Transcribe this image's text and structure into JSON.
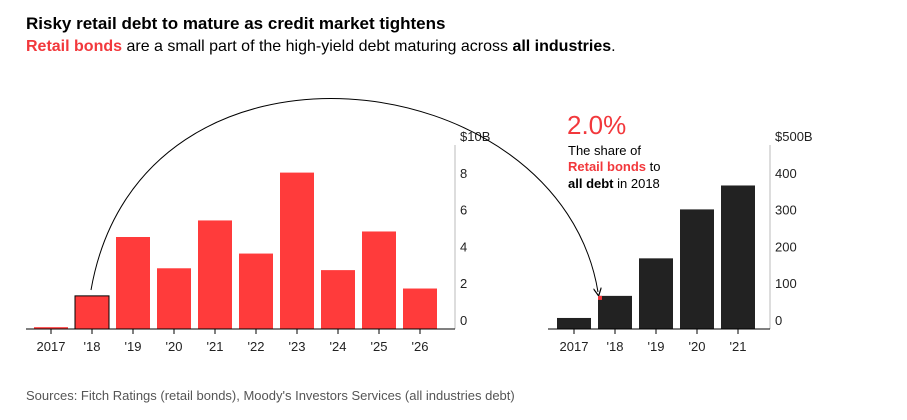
{
  "title": "Risky retail debt to mature as credit market tightens",
  "subtitle": {
    "part1": "Retail bonds",
    "part2": " are a small part of the high-yield debt maturing across ",
    "part3": "all industries",
    "part4": "."
  },
  "annotation": {
    "value": "2.0%",
    "line1": "The share of",
    "line2_red": "Retail bonds",
    "line2_rest": " to",
    "line3_bold": "all debt",
    "line3_rest": " in 2018"
  },
  "source": "Sources: Fitch Ratings (retail bonds), Moody's Investors Services (all industries debt)",
  "colors": {
    "retail": "#ff3b3b",
    "all": "#222222",
    "highlight": "#f2383c"
  },
  "chart_data": [
    {
      "type": "bar",
      "name": "Retail bonds",
      "categories": [
        "2017",
        "'18",
        "'19",
        "'20",
        "'21",
        "'22",
        "'23",
        "'24",
        "'25",
        "'26"
      ],
      "values": [
        0.1,
        1.8,
        5.0,
        3.3,
        5.9,
        4.1,
        8.5,
        3.2,
        5.3,
        2.2
      ],
      "ylim": [
        0,
        10
      ],
      "yticks": [
        "$10B",
        "8",
        "6",
        "4",
        "2",
        "0"
      ],
      "highlight_index": 1
    },
    {
      "type": "bar",
      "name": "All industries",
      "categories": [
        "2017",
        "'18",
        "'19",
        "'20",
        "'21"
      ],
      "values": [
        30,
        90,
        192,
        325,
        390
      ],
      "ylim": [
        0,
        500
      ],
      "yticks": [
        "$500B",
        "400",
        "300",
        "200",
        "100",
        "0"
      ],
      "retail_share_2018": 2.0
    }
  ]
}
